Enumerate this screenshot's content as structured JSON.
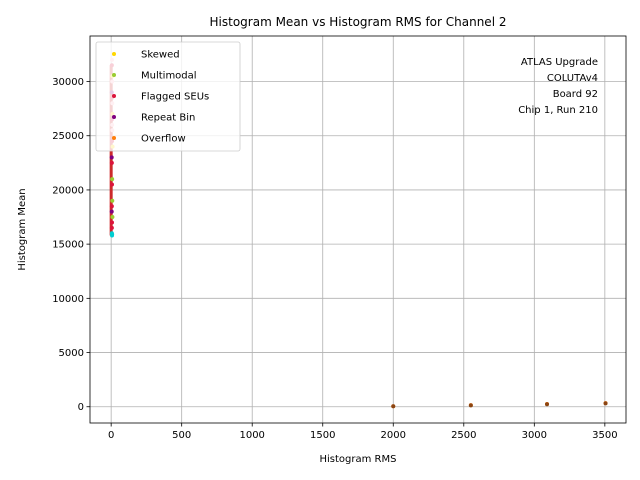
{
  "chart_data": {
    "type": "scatter",
    "title": "Histogram Mean vs Histogram RMS for Channel 2",
    "xlabel": "Histogram RMS",
    "ylabel": "Histogram Mean",
    "xlim": [
      -150,
      3650
    ],
    "ylim": [
      -1500,
      34200
    ],
    "xticks": [
      0,
      500,
      1000,
      1500,
      2000,
      2500,
      3000,
      3500
    ],
    "yticks": [
      0,
      5000,
      10000,
      15000,
      20000,
      25000,
      30000
    ],
    "grid": true,
    "legend_position": "top-left",
    "annotation": [
      "ATLAS Upgrade",
      "COLUTAv4",
      "Board 92",
      "Chip 1, Run 210"
    ],
    "series": [
      {
        "name": "Skewed",
        "color": "#ffd700",
        "points": [
          [
            8,
            30500
          ],
          [
            9,
            27000
          ],
          [
            10,
            24000
          ]
        ]
      },
      {
        "name": "Multimodal",
        "color": "#9acd32",
        "points": [
          [
            7,
            21000
          ],
          [
            8,
            19000
          ],
          [
            9,
            17500
          ]
        ]
      },
      {
        "name": "Flagged SEUs",
        "color": "#dc143c",
        "points": [
          [
            5,
            31500
          ],
          [
            6,
            28500
          ],
          [
            5,
            26500
          ],
          [
            6,
            24500
          ],
          [
            5,
            22500
          ],
          [
            6,
            20500
          ],
          [
            5,
            18500
          ],
          [
            6,
            17000
          ],
          [
            5,
            16500
          ]
        ]
      },
      {
        "name": "Repeat Bin",
        "color": "#800080",
        "points": [
          [
            4,
            29000
          ],
          [
            4,
            23000
          ],
          [
            4,
            18000
          ]
        ]
      },
      {
        "name": "Overflow",
        "color": "#ff7f0e",
        "points": [
          [
            2000,
            50
          ],
          [
            2550,
            150
          ],
          [
            3090,
            250
          ],
          [
            3505,
            330
          ]
        ]
      },
      {
        "name": "",
        "color": "#8b4513",
        "points": [
          [
            2000,
            40
          ],
          [
            2550,
            130
          ],
          [
            3090,
            230
          ],
          [
            3505,
            310
          ]
        ]
      },
      {
        "name": "",
        "color": "#00ced1",
        "points": [
          [
            6,
            15800
          ],
          [
            7,
            15900
          ],
          [
            5,
            16000
          ]
        ]
      },
      {
        "name": "",
        "color": "#ffb6c1",
        "points": [
          [
            6,
            32000
          ],
          [
            7,
            30000
          ],
          [
            8,
            28000
          ],
          [
            7,
            26000
          ],
          [
            8,
            25500
          ]
        ]
      }
    ]
  }
}
